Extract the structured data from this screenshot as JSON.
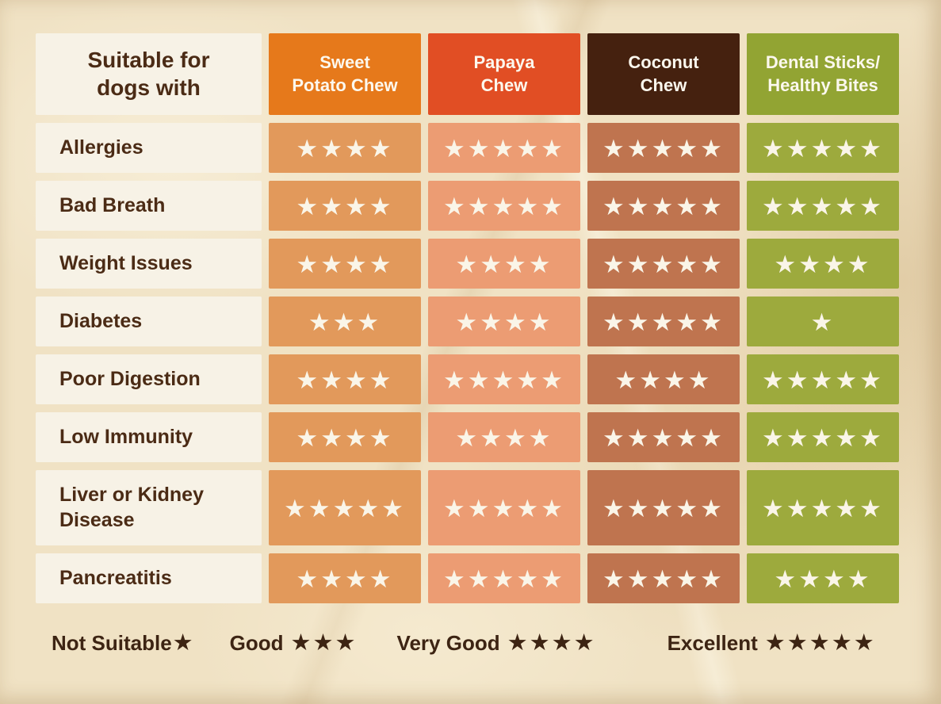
{
  "colors": {
    "paper": "#f0e2c4",
    "label_bg": "#f7f2e6",
    "label_text": "#4b2b15",
    "header_text": "#fcf8ee",
    "star": "#faf5e8",
    "legend_text": "#3d2413",
    "col1_header": "#e6791b",
    "col1_cell": "#e2995b",
    "col2_header": "#e14e24",
    "col2_cell": "#ec9c73",
    "col3_header": "#45210f",
    "col3_cell": "#bf744f",
    "col4_header": "#92a433",
    "col4_cell": "#9daa3d"
  },
  "table": {
    "corner": {
      "line1": "Suitable for",
      "line2": "dogs with"
    },
    "columns": [
      {
        "line1": "Sweet",
        "line2": "Potato Chew",
        "name": "Sweet Potato Chew"
      },
      {
        "line1": "Papaya",
        "line2": "Chew",
        "name": "Papaya Chew"
      },
      {
        "line1": "Coconut",
        "line2": "Chew",
        "name": "Coconut Chew"
      },
      {
        "line1": "Dental Sticks/",
        "line2": "Healthy Bites",
        "name": "Dental Sticks/Healthy Bites"
      }
    ],
    "rows": [
      {
        "label": "Allergies",
        "ratings": [
          4,
          5,
          5,
          5
        ]
      },
      {
        "label": "Bad Breath",
        "ratings": [
          4,
          5,
          5,
          5
        ]
      },
      {
        "label": "Weight Issues",
        "ratings": [
          4,
          4,
          5,
          4
        ]
      },
      {
        "label": "Diabetes",
        "ratings": [
          3,
          4,
          5,
          1
        ]
      },
      {
        "label": "Poor Digestion",
        "ratings": [
          4,
          5,
          4,
          5
        ]
      },
      {
        "label": "Low Immunity",
        "ratings": [
          4,
          4,
          5,
          5
        ]
      },
      {
        "label": "Liver or Kidney Disease",
        "ratings": [
          5,
          5,
          5,
          5
        ]
      },
      {
        "label": "Pancreatitis",
        "ratings": [
          4,
          5,
          5,
          4
        ]
      }
    ]
  },
  "legend": [
    {
      "label": "Not Suitable",
      "stars": 1
    },
    {
      "label": "Good",
      "stars": 3
    },
    {
      "label": "Very Good",
      "stars": 4
    },
    {
      "label": "Excellent",
      "stars": 5
    }
  ],
  "star_char": "★",
  "chart_data": {
    "type": "table",
    "title": "Suitable for dogs with",
    "categories": [
      "Allergies",
      "Bad Breath",
      "Weight Issues",
      "Diabetes",
      "Poor Digestion",
      "Low Immunity",
      "Liver or Kidney Disease",
      "Pancreatitis"
    ],
    "series": [
      {
        "name": "Sweet Potato Chew",
        "values": [
          4,
          4,
          4,
          3,
          4,
          4,
          5,
          4
        ]
      },
      {
        "name": "Papaya Chew",
        "values": [
          5,
          5,
          4,
          4,
          5,
          4,
          5,
          5
        ]
      },
      {
        "name": "Coconut Chew",
        "values": [
          5,
          5,
          5,
          5,
          4,
          5,
          5,
          5
        ]
      },
      {
        "name": "Dental Sticks/Healthy Bites",
        "values": [
          5,
          5,
          4,
          1,
          5,
          5,
          5,
          4
        ]
      }
    ],
    "value_scale": {
      "min": 1,
      "max": 5,
      "unit": "stars"
    },
    "legend": [
      {
        "stars": 1,
        "meaning": "Not Suitable"
      },
      {
        "stars": 3,
        "meaning": "Good"
      },
      {
        "stars": 4,
        "meaning": "Very Good"
      },
      {
        "stars": 5,
        "meaning": "Excellent"
      }
    ],
    "legend_position": "bottom"
  }
}
